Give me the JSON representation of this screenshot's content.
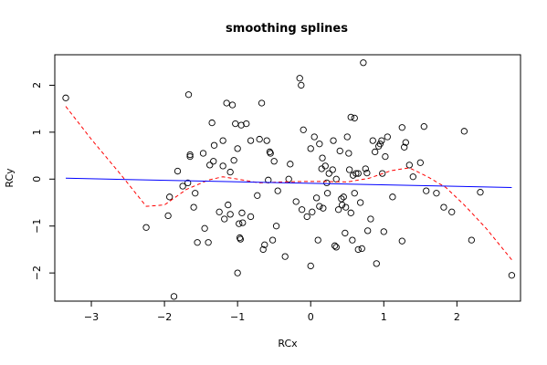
{
  "chart_data": {
    "type": "scatter",
    "title": "smoothing splines",
    "xlabel": "RCx",
    "ylabel": "RCy",
    "xlim": [
      -3.5,
      2.87
    ],
    "ylim": [
      -2.6,
      2.65
    ],
    "xticks": [
      -3,
      -2,
      -1,
      0,
      1,
      2
    ],
    "yticks": [
      -2,
      -1,
      0,
      1,
      2
    ],
    "grid": false,
    "legend": "none",
    "points": [
      [
        -3.35,
        1.73
      ],
      [
        -2.25,
        -1.03
      ],
      [
        -1.95,
        -0.78
      ],
      [
        -1.93,
        -0.38
      ],
      [
        -1.87,
        -2.5
      ],
      [
        -1.82,
        0.17
      ],
      [
        -1.75,
        -0.15
      ],
      [
        -1.68,
        -0.08
      ],
      [
        -1.67,
        1.8
      ],
      [
        -1.65,
        0.52
      ],
      [
        -1.65,
        0.48
      ],
      [
        -1.6,
        -0.6
      ],
      [
        -1.58,
        -0.3
      ],
      [
        -1.55,
        -1.35
      ],
      [
        -1.47,
        0.55
      ],
      [
        -1.45,
        -1.05
      ],
      [
        -1.4,
        -1.35
      ],
      [
        -1.38,
        0.3
      ],
      [
        -1.35,
        1.2
      ],
      [
        -1.33,
        0.38
      ],
      [
        -1.32,
        0.72
      ],
      [
        -1.25,
        -0.7
      ],
      [
        -1.2,
        0.82
      ],
      [
        -1.2,
        0.28
      ],
      [
        -1.18,
        -0.85
      ],
      [
        -1.15,
        1.62
      ],
      [
        -1.13,
        -0.55
      ],
      [
        -1.1,
        0.15
      ],
      [
        -1.1,
        -0.75
      ],
      [
        -1.07,
        1.58
      ],
      [
        -1.05,
        0.4
      ],
      [
        -1.03,
        1.18
      ],
      [
        -1.0,
        0.65
      ],
      [
        -1.0,
        -2.0
      ],
      [
        -0.98,
        -0.95
      ],
      [
        -0.97,
        -1.25
      ],
      [
        -0.96,
        -1.28
      ],
      [
        -0.95,
        1.15
      ],
      [
        -0.94,
        -0.72
      ],
      [
        -0.93,
        -0.93
      ],
      [
        -0.88,
        1.18
      ],
      [
        -0.82,
        0.82
      ],
      [
        -0.82,
        -0.8
      ],
      [
        -0.73,
        -0.35
      ],
      [
        -0.7,
        0.85
      ],
      [
        -0.67,
        1.62
      ],
      [
        -0.65,
        -1.5
      ],
      [
        -0.63,
        -1.4
      ],
      [
        -0.6,
        0.82
      ],
      [
        -0.58,
        -0.02
      ],
      [
        -0.56,
        0.58
      ],
      [
        -0.55,
        0.55
      ],
      [
        -0.52,
        -1.3
      ],
      [
        -0.5,
        0.38
      ],
      [
        -0.47,
        -1.0
      ],
      [
        -0.45,
        -0.25
      ],
      [
        -0.35,
        -1.65
      ],
      [
        -0.3,
        0.0
      ],
      [
        -0.28,
        0.32
      ],
      [
        -0.2,
        -0.48
      ],
      [
        -0.15,
        2.15
      ],
      [
        -0.13,
        2.0
      ],
      [
        -0.12,
        -0.65
      ],
      [
        -0.1,
        1.05
      ],
      [
        -0.05,
        -0.8
      ],
      [
        0.0,
        0.65
      ],
      [
        0.0,
        -1.85
      ],
      [
        0.02,
        -0.7
      ],
      [
        0.05,
        0.9
      ],
      [
        0.08,
        -0.4
      ],
      [
        0.1,
        -1.3
      ],
      [
        0.12,
        0.75
      ],
      [
        0.12,
        -0.58
      ],
      [
        0.15,
        0.22
      ],
      [
        0.16,
        0.45
      ],
      [
        0.17,
        -0.62
      ],
      [
        0.2,
        0.28
      ],
      [
        0.22,
        -0.08
      ],
      [
        0.23,
        -0.3
      ],
      [
        0.25,
        0.12
      ],
      [
        0.3,
        0.2
      ],
      [
        0.31,
        0.82
      ],
      [
        0.33,
        -1.42
      ],
      [
        0.35,
        0.0
      ],
      [
        0.35,
        -1.45
      ],
      [
        0.38,
        -0.65
      ],
      [
        0.4,
        0.6
      ],
      [
        0.42,
        -0.42
      ],
      [
        0.43,
        -0.55
      ],
      [
        0.45,
        -0.38
      ],
      [
        0.47,
        -1.15
      ],
      [
        0.48,
        -0.6
      ],
      [
        0.5,
        0.9
      ],
      [
        0.52,
        0.55
      ],
      [
        0.53,
        0.2
      ],
      [
        0.55,
        1.32
      ],
      [
        0.55,
        -0.72
      ],
      [
        0.57,
        -1.3
      ],
      [
        0.58,
        0.08
      ],
      [
        0.6,
        -0.3
      ],
      [
        0.6,
        1.3
      ],
      [
        0.62,
        0.12
      ],
      [
        0.65,
        0.12
      ],
      [
        0.65,
        -1.5
      ],
      [
        0.68,
        -0.5
      ],
      [
        0.7,
        -1.48
      ],
      [
        0.72,
        2.48
      ],
      [
        0.75,
        0.22
      ],
      [
        0.77,
        0.13
      ],
      [
        0.78,
        -1.1
      ],
      [
        0.82,
        -0.85
      ],
      [
        0.85,
        0.82
      ],
      [
        0.88,
        0.58
      ],
      [
        0.9,
        -1.8
      ],
      [
        0.93,
        0.7
      ],
      [
        0.95,
        0.75
      ],
      [
        0.97,
        0.82
      ],
      [
        0.98,
        0.12
      ],
      [
        1.0,
        -1.12
      ],
      [
        1.02,
        0.48
      ],
      [
        1.05,
        0.9
      ],
      [
        1.12,
        -0.38
      ],
      [
        1.25,
        1.1
      ],
      [
        1.25,
        -1.32
      ],
      [
        1.28,
        0.68
      ],
      [
        1.3,
        0.78
      ],
      [
        1.35,
        0.3
      ],
      [
        1.4,
        0.05
      ],
      [
        1.5,
        0.35
      ],
      [
        1.55,
        1.12
      ],
      [
        1.58,
        -0.25
      ],
      [
        1.72,
        -0.3
      ],
      [
        1.82,
        -0.6
      ],
      [
        1.93,
        -0.7
      ],
      [
        2.1,
        1.02
      ],
      [
        2.2,
        -1.3
      ],
      [
        2.32,
        -0.28
      ],
      [
        2.75,
        -2.05
      ]
    ],
    "series": [
      {
        "style": "dashed",
        "color": "#ff0000",
        "x": [
          -3.35,
          -3.0,
          -2.6,
          -2.25,
          -2.0,
          -1.7,
          -1.4,
          -1.2,
          -1.0,
          -0.7,
          -0.4,
          -0.1,
          0.2,
          0.5,
          0.8,
          1.1,
          1.35,
          1.6,
          1.85,
          2.1,
          2.4,
          2.75
        ],
        "y": [
          1.55,
          0.85,
          0.1,
          -0.58,
          -0.55,
          -0.22,
          -0.02,
          0.05,
          0.0,
          -0.08,
          -0.06,
          -0.05,
          -0.05,
          -0.06,
          0.02,
          0.18,
          0.24,
          0.05,
          -0.18,
          -0.55,
          -1.05,
          -1.72
        ]
      },
      {
        "style": "solid",
        "color": "#0000ff",
        "x": [
          -3.35,
          2.75
        ],
        "y": [
          0.02,
          -0.18
        ]
      }
    ]
  }
}
